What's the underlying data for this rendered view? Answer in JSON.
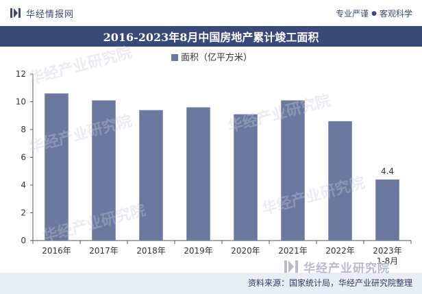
{
  "header": {
    "brand_name": "华经情报网",
    "tagline_left": "专业严谨",
    "tagline_right": "客观科学",
    "logo_icon": "brand-logo-icon"
  },
  "title": "2016-2023年8月中国房地产累计竣工面积",
  "chart_data": {
    "type": "bar",
    "categories": [
      "2016年",
      "2017年",
      "2018年",
      "2019年",
      "2020年",
      "2021年",
      "2022年",
      "2023年\n1-8月"
    ],
    "series": [
      {
        "name": "面积（亿平方米）",
        "values": [
          10.6,
          10.1,
          9.4,
          9.6,
          9.1,
          10.1,
          8.6,
          4.4
        ]
      }
    ],
    "data_labels": [
      null,
      null,
      null,
      null,
      null,
      null,
      null,
      "4.4"
    ],
    "ylim": [
      0,
      12
    ],
    "yticks": [
      0,
      2,
      4,
      6,
      8,
      10,
      12
    ],
    "grid": false,
    "legend": "top-center",
    "bar_color": "#6b79a0"
  },
  "watermark": "华经产业研究院",
  "footer": {
    "logo_text": "华经产业研究院",
    "source": "资料来源：国家统计局，华经产业研究院整理"
  },
  "colors": {
    "primary": "#3a4a78",
    "bar": "#6b79a0",
    "footer_bg": "#e9edf5"
  }
}
